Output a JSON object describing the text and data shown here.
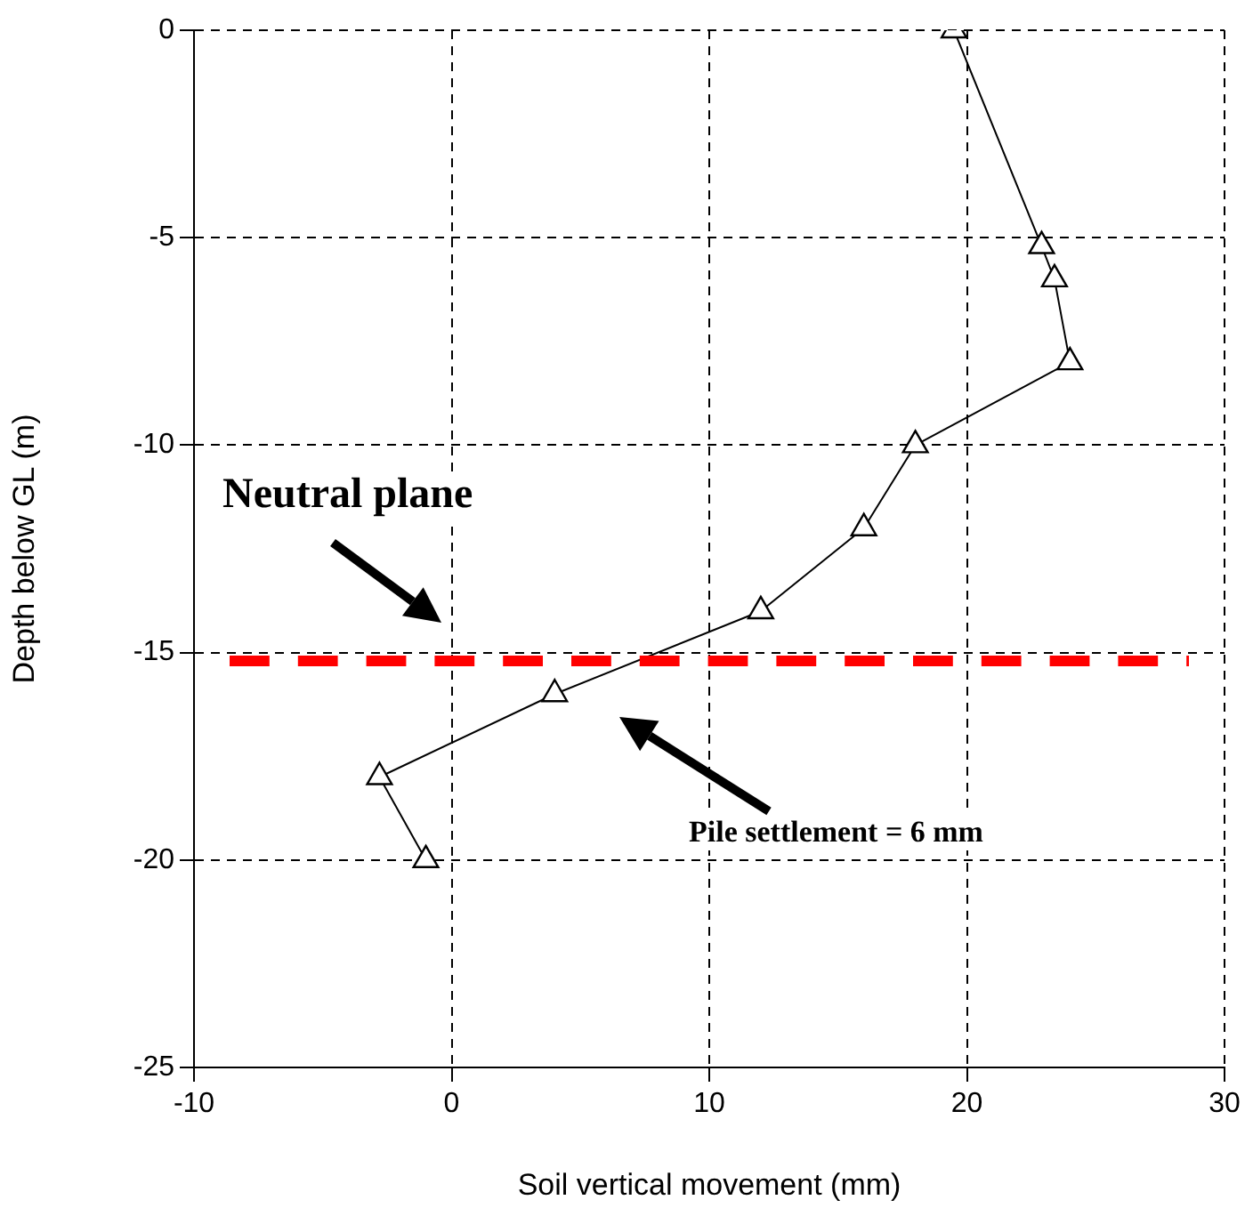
{
  "chart_data": {
    "type": "line",
    "xlabel": "Soil vertical movement (mm)",
    "ylabel": "Depth below GL (m)",
    "x": [
      19.5,
      22.9,
      23.4,
      24.0,
      18.0,
      16.0,
      12.0,
      4.0,
      -2.8,
      -1.0
    ],
    "series": [
      {
        "color": "#000000",
        "values": [
          0,
          -5.2,
          -6,
          -8,
          -10,
          -12,
          -14,
          -16,
          -18,
          -20
        ]
      }
    ],
    "xlim": [
      -10,
      30
    ],
    "xticks": [
      -10,
      0,
      10,
      20,
      30
    ],
    "ylim": [
      -25,
      0
    ],
    "yticks": [
      -25,
      -20,
      -15,
      -10,
      -5,
      0
    ],
    "grid": true,
    "marker": "triangle",
    "line_style": "solid",
    "ref_lines": [
      {
        "axis": "y",
        "value": -15.2,
        "color": "#ff0000",
        "line_style": "dashed"
      }
    ],
    "annotations": [
      "Neutral plane",
      "Pile settlement = 6 mm"
    ]
  }
}
